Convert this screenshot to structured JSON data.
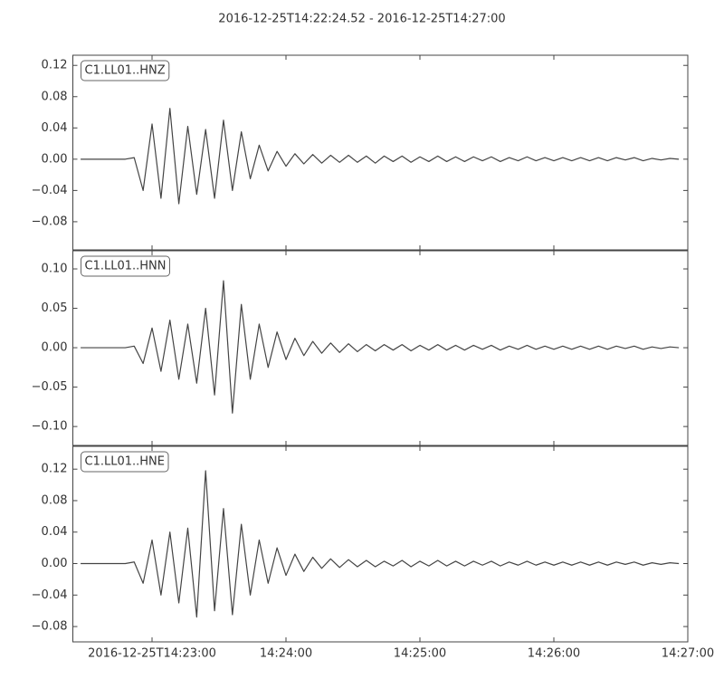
{
  "title": "2016-12-25T14:22:24.52  -  2016-12-25T14:27:00",
  "chart_data": [
    {
      "type": "line",
      "label": "C1.LL01..HNZ",
      "color": "#444444",
      "xlim": [
        "2016-12-25T14:22:24.52",
        "2016-12-25T14:27:00"
      ],
      "ylim": [
        -0.116,
        0.133
      ],
      "yticks": [
        {
          "value": -0.08,
          "label": "−0.08"
        },
        {
          "value": -0.04,
          "label": "−0.04"
        },
        {
          "value": 0,
          "label": "0.00"
        },
        {
          "value": 0.04,
          "label": "0.04"
        },
        {
          "value": 0.08,
          "label": "0.08"
        },
        {
          "value": 0.12,
          "label": "0.12"
        }
      ],
      "x": [
        "14:22:28",
        "14:22:32",
        "14:22:36",
        "14:22:40",
        "14:22:44",
        "14:22:48",
        "14:22:52",
        "14:22:56",
        "14:23:00",
        "14:23:04",
        "14:23:08",
        "14:23:12",
        "14:23:16",
        "14:23:20",
        "14:23:24",
        "14:23:28",
        "14:23:32",
        "14:23:36",
        "14:23:40",
        "14:23:44",
        "14:23:48",
        "14:23:52",
        "14:23:56",
        "14:24:00",
        "14:24:04",
        "14:24:08",
        "14:24:12",
        "14:24:16",
        "14:24:20",
        "14:24:24",
        "14:24:28",
        "14:24:32",
        "14:24:36",
        "14:24:40",
        "14:24:44",
        "14:24:48",
        "14:24:52",
        "14:24:56",
        "14:25:00",
        "14:25:04",
        "14:25:08",
        "14:25:12",
        "14:25:16",
        "14:25:20",
        "14:25:24",
        "14:25:28",
        "14:25:32",
        "14:25:36",
        "14:25:40",
        "14:25:44",
        "14:25:48",
        "14:25:52",
        "14:25:56",
        "14:26:00",
        "14:26:04",
        "14:26:08",
        "14:26:12",
        "14:26:16",
        "14:26:20",
        "14:26:24",
        "14:26:28",
        "14:26:32",
        "14:26:36",
        "14:26:40",
        "14:26:44",
        "14:26:48",
        "14:26:52",
        "14:26:56"
      ],
      "values": [
        0,
        0,
        0,
        0,
        0,
        0,
        0.002,
        -0.04,
        0.045,
        -0.05,
        0.065,
        -0.057,
        0.042,
        -0.045,
        0.038,
        -0.05,
        0.05,
        -0.04,
        0.035,
        -0.025,
        0.018,
        -0.015,
        0.01,
        -0.009,
        0.007,
        -0.006,
        0.006,
        -0.005,
        0.005,
        -0.004,
        0.005,
        -0.004,
        0.004,
        -0.005,
        0.004,
        -0.003,
        0.004,
        -0.004,
        0.003,
        -0.003,
        0.004,
        -0.003,
        0.003,
        -0.003,
        0.003,
        -0.002,
        0.003,
        -0.003,
        0.002,
        -0.002,
        0.003,
        -0.002,
        0.002,
        -0.002,
        0.002,
        -0.002,
        0.002,
        -0.002,
        0.002,
        -0.002,
        0.002,
        -0.001,
        0.002,
        -0.002,
        0.001,
        -0.001,
        0.001,
        0
      ]
    },
    {
      "type": "line",
      "label": "C1.LL01..HNN",
      "color": "#444444",
      "xlim": [
        "2016-12-25T14:22:24.52",
        "2016-12-25T14:27:00"
      ],
      "ylim": [
        -0.124,
        0.123
      ],
      "yticks": [
        {
          "value": -0.1,
          "label": "−0.10"
        },
        {
          "value": -0.05,
          "label": "−0.05"
        },
        {
          "value": 0,
          "label": "0.00"
        },
        {
          "value": 0.05,
          "label": "0.05"
        },
        {
          "value": 0.1,
          "label": "0.10"
        }
      ],
      "x": [
        "14:22:28",
        "14:22:32",
        "14:22:36",
        "14:22:40",
        "14:22:44",
        "14:22:48",
        "14:22:52",
        "14:22:56",
        "14:23:00",
        "14:23:04",
        "14:23:08",
        "14:23:12",
        "14:23:16",
        "14:23:20",
        "14:23:24",
        "14:23:28",
        "14:23:32",
        "14:23:36",
        "14:23:40",
        "14:23:44",
        "14:23:48",
        "14:23:52",
        "14:23:56",
        "14:24:00",
        "14:24:04",
        "14:24:08",
        "14:24:12",
        "14:24:16",
        "14:24:20",
        "14:24:24",
        "14:24:28",
        "14:24:32",
        "14:24:36",
        "14:24:40",
        "14:24:44",
        "14:24:48",
        "14:24:52",
        "14:24:56",
        "14:25:00",
        "14:25:04",
        "14:25:08",
        "14:25:12",
        "14:25:16",
        "14:25:20",
        "14:25:24",
        "14:25:28",
        "14:25:32",
        "14:25:36",
        "14:25:40",
        "14:25:44",
        "14:25:48",
        "14:25:52",
        "14:25:56",
        "14:26:00",
        "14:26:04",
        "14:26:08",
        "14:26:12",
        "14:26:16",
        "14:26:20",
        "14:26:24",
        "14:26:28",
        "14:26:32",
        "14:26:36",
        "14:26:40",
        "14:26:44",
        "14:26:48",
        "14:26:52",
        "14:26:56"
      ],
      "values": [
        0,
        0,
        0,
        0,
        0,
        0,
        0.002,
        -0.02,
        0.025,
        -0.03,
        0.035,
        -0.04,
        0.03,
        -0.045,
        0.05,
        -0.06,
        0.085,
        -0.083,
        0.055,
        -0.04,
        0.03,
        -0.025,
        0.02,
        -0.015,
        0.012,
        -0.01,
        0.008,
        -0.007,
        0.006,
        -0.006,
        0.005,
        -0.005,
        0.004,
        -0.004,
        0.004,
        -0.003,
        0.004,
        -0.004,
        0.003,
        -0.003,
        0.004,
        -0.003,
        0.003,
        -0.003,
        0.003,
        -0.002,
        0.003,
        -0.003,
        0.002,
        -0.002,
        0.003,
        -0.002,
        0.002,
        -0.002,
        0.002,
        -0.002,
        0.002,
        -0.002,
        0.002,
        -0.002,
        0.002,
        -0.001,
        0.002,
        -0.002,
        0.001,
        -0.001,
        0.001,
        0
      ]
    },
    {
      "type": "line",
      "label": "C1.LL01..HNE",
      "color": "#444444",
      "xlim": [
        "2016-12-25T14:22:24.52",
        "2016-12-25T14:27:00"
      ],
      "ylim": [
        -0.0995,
        0.149
      ],
      "yticks": [
        {
          "value": -0.08,
          "label": "−0.08"
        },
        {
          "value": -0.04,
          "label": "−0.04"
        },
        {
          "value": 0,
          "label": "0.00"
        },
        {
          "value": 0.04,
          "label": "0.04"
        },
        {
          "value": 0.08,
          "label": "0.08"
        },
        {
          "value": 0.12,
          "label": "0.12"
        }
      ],
      "xticks": [
        "2016-12-25T14:23:00",
        {
          "value": "2016-12-25T14:24:00",
          "label": "14:24:00"
        },
        {
          "value": "2016-12-25T14:25:00",
          "label": "14:25:00"
        },
        {
          "value": "2016-12-25T14:26:00",
          "label": "14:26:00"
        },
        {
          "value": "2016-12-25T14:27:00",
          "label": "14:27:00"
        }
      ],
      "x": [
        "14:22:28",
        "14:22:32",
        "14:22:36",
        "14:22:40",
        "14:22:44",
        "14:22:48",
        "14:22:52",
        "14:22:56",
        "14:23:00",
        "14:23:04",
        "14:23:08",
        "14:23:12",
        "14:23:16",
        "14:23:20",
        "14:23:24",
        "14:23:28",
        "14:23:32",
        "14:23:36",
        "14:23:40",
        "14:23:44",
        "14:23:48",
        "14:23:52",
        "14:23:56",
        "14:24:00",
        "14:24:04",
        "14:24:08",
        "14:24:12",
        "14:24:16",
        "14:24:20",
        "14:24:24",
        "14:24:28",
        "14:24:32",
        "14:24:36",
        "14:24:40",
        "14:24:44",
        "14:24:48",
        "14:24:52",
        "14:24:56",
        "14:25:00",
        "14:25:04",
        "14:25:08",
        "14:25:12",
        "14:25:16",
        "14:25:20",
        "14:25:24",
        "14:25:28",
        "14:25:32",
        "14:25:36",
        "14:25:40",
        "14:25:44",
        "14:25:48",
        "14:25:52",
        "14:25:56",
        "14:26:00",
        "14:26:04",
        "14:26:08",
        "14:26:12",
        "14:26:16",
        "14:26:20",
        "14:26:24",
        "14:26:28",
        "14:26:32",
        "14:26:36",
        "14:26:40",
        "14:26:44",
        "14:26:48",
        "14:26:52",
        "14:26:56"
      ],
      "values": [
        0,
        0,
        0,
        0,
        0,
        0,
        0.002,
        -0.025,
        0.03,
        -0.04,
        0.04,
        -0.05,
        0.045,
        -0.068,
        0.118,
        -0.06,
        0.07,
        -0.065,
        0.05,
        -0.04,
        0.03,
        -0.025,
        0.02,
        -0.015,
        0.012,
        -0.01,
        0.008,
        -0.006,
        0.006,
        -0.005,
        0.005,
        -0.004,
        0.004,
        -0.004,
        0.003,
        -0.003,
        0.004,
        -0.004,
        0.003,
        -0.003,
        0.004,
        -0.003,
        0.003,
        -0.003,
        0.003,
        -0.002,
        0.003,
        -0.003,
        0.002,
        -0.002,
        0.003,
        -0.002,
        0.002,
        -0.002,
        0.002,
        -0.002,
        0.002,
        -0.002,
        0.002,
        -0.002,
        0.002,
        -0.001,
        0.002,
        -0.002,
        0.001,
        -0.001,
        0.001,
        0
      ]
    }
  ]
}
